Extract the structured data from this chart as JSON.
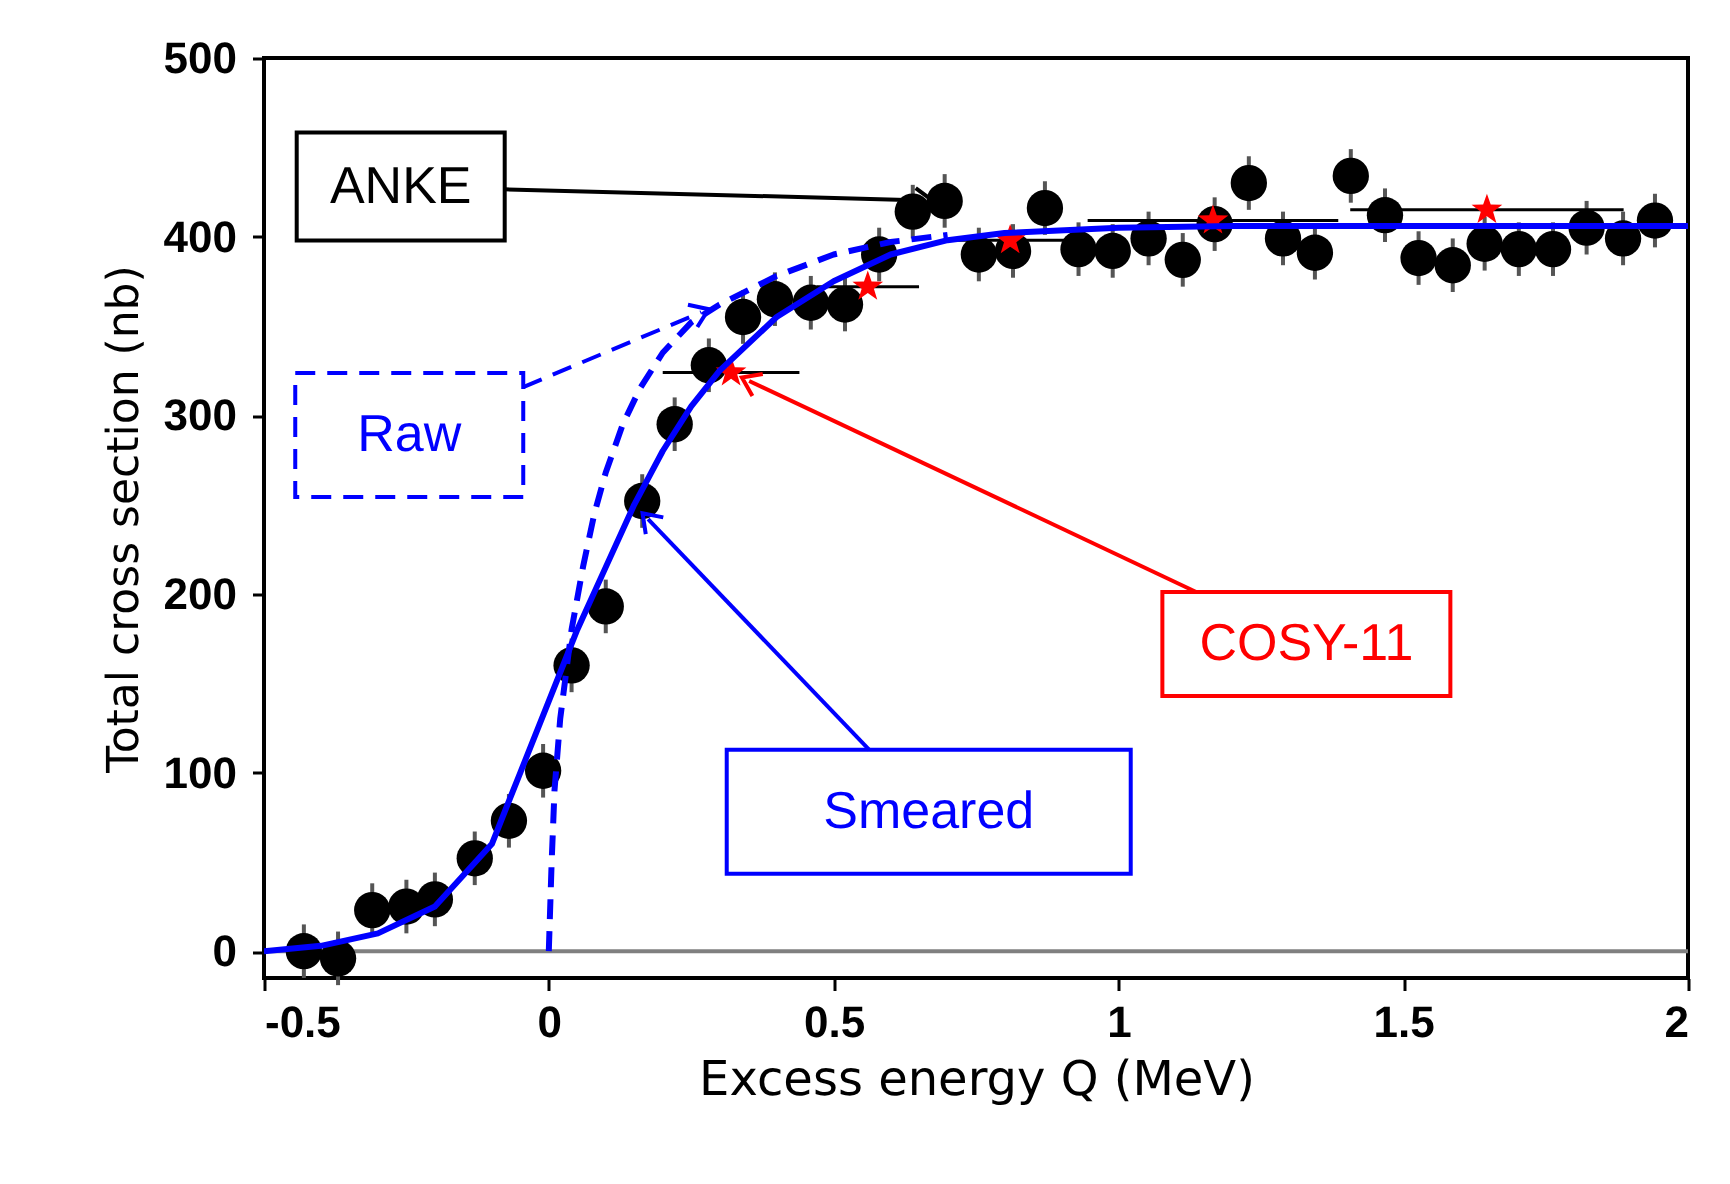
{
  "chart_data": {
    "type": "scatter",
    "xlabel": "Excess energy Q (MeV)",
    "ylabel": "Total cross section (nb)",
    "xlim": [
      -0.5,
      2
    ],
    "xticks": [
      -0.5,
      0,
      0.5,
      1,
      1.5,
      2
    ],
    "ylim": [
      -15,
      500
    ],
    "yticks": [
      0,
      100,
      200,
      300,
      400,
      500
    ],
    "grid": false,
    "ref_lines": [
      {
        "axis": "y",
        "value": 0,
        "color": "#808080"
      }
    ],
    "series": [
      {
        "name": "ANKE",
        "marker": "circle",
        "color": "#000000",
        "x": [
          -0.43,
          -0.37,
          -0.31,
          -0.25,
          -0.2,
          -0.13,
          -0.07,
          -0.01,
          0.04,
          0.1,
          0.164,
          0.221,
          0.281,
          0.341,
          0.397,
          0.46,
          0.52,
          0.58,
          0.639,
          0.695,
          0.755,
          0.815,
          0.871,
          0.93,
          0.99,
          1.053,
          1.113,
          1.169,
          1.229,
          1.289,
          1.345,
          1.408,
          1.468,
          1.527,
          1.587,
          1.643,
          1.703,
          1.763,
          1.822,
          1.886,
          1.942
        ],
        "values": [
          0,
          -4,
          23,
          25,
          29,
          52,
          73,
          101,
          160,
          193,
          252,
          295,
          328,
          355,
          365,
          363,
          362,
          390,
          414,
          420,
          390,
          392,
          416,
          393,
          392,
          399,
          387,
          407,
          430,
          399,
          391,
          434,
          412,
          388,
          384,
          396,
          393,
          393,
          405,
          399,
          409
        ],
        "errors": [
          15,
          15,
          15,
          15,
          15,
          15,
          15,
          15,
          15,
          15,
          15,
          15,
          15,
          15,
          15,
          15,
          15,
          15,
          15,
          15,
          15,
          15,
          15,
          15,
          15,
          15,
          15,
          15,
          15,
          15,
          15,
          15,
          15,
          15,
          15,
          15,
          15,
          15,
          15,
          15,
          15
        ]
      },
      {
        "name": "COSY-11",
        "marker": "star",
        "color": "#ff0000",
        "x": [
          0.32,
          0.56,
          0.81,
          1.166,
          1.647
        ],
        "values": [
          324,
          372,
          398,
          409,
          415
        ],
        "xerrors": [
          0.12,
          0.09,
          0.1,
          0.22,
          0.24
        ]
      },
      {
        "name": "Raw",
        "type": "line",
        "line_style": "dashed",
        "color": "#0000ff",
        "x": [
          0,
          0.005,
          0.01,
          0.02,
          0.04,
          0.06,
          0.08,
          0.1,
          0.13,
          0.16,
          0.2,
          0.25,
          0.3,
          0.4,
          0.5,
          0.6,
          0.7
        ],
        "values": [
          0,
          50,
          90,
          130,
          180,
          215,
          245,
          268,
          295,
          315,
          335,
          352,
          362,
          378,
          390,
          397,
          401
        ]
      },
      {
        "name": "Smeared",
        "type": "line",
        "line_style": "solid",
        "color": "#0000ff",
        "x": [
          -0.5,
          -0.4,
          -0.3,
          -0.2,
          -0.1,
          -0.05,
          0,
          0.05,
          0.1,
          0.15,
          0.2,
          0.25,
          0.3,
          0.4,
          0.5,
          0.6,
          0.7,
          0.8,
          1,
          1.2,
          1.5,
          2
        ],
        "values": [
          0,
          3,
          10,
          25,
          60,
          100,
          140,
          180,
          215,
          250,
          280,
          305,
          325,
          355,
          375,
          390,
          398,
          402,
          405,
          406,
          406,
          406
        ]
      }
    ]
  }
}
